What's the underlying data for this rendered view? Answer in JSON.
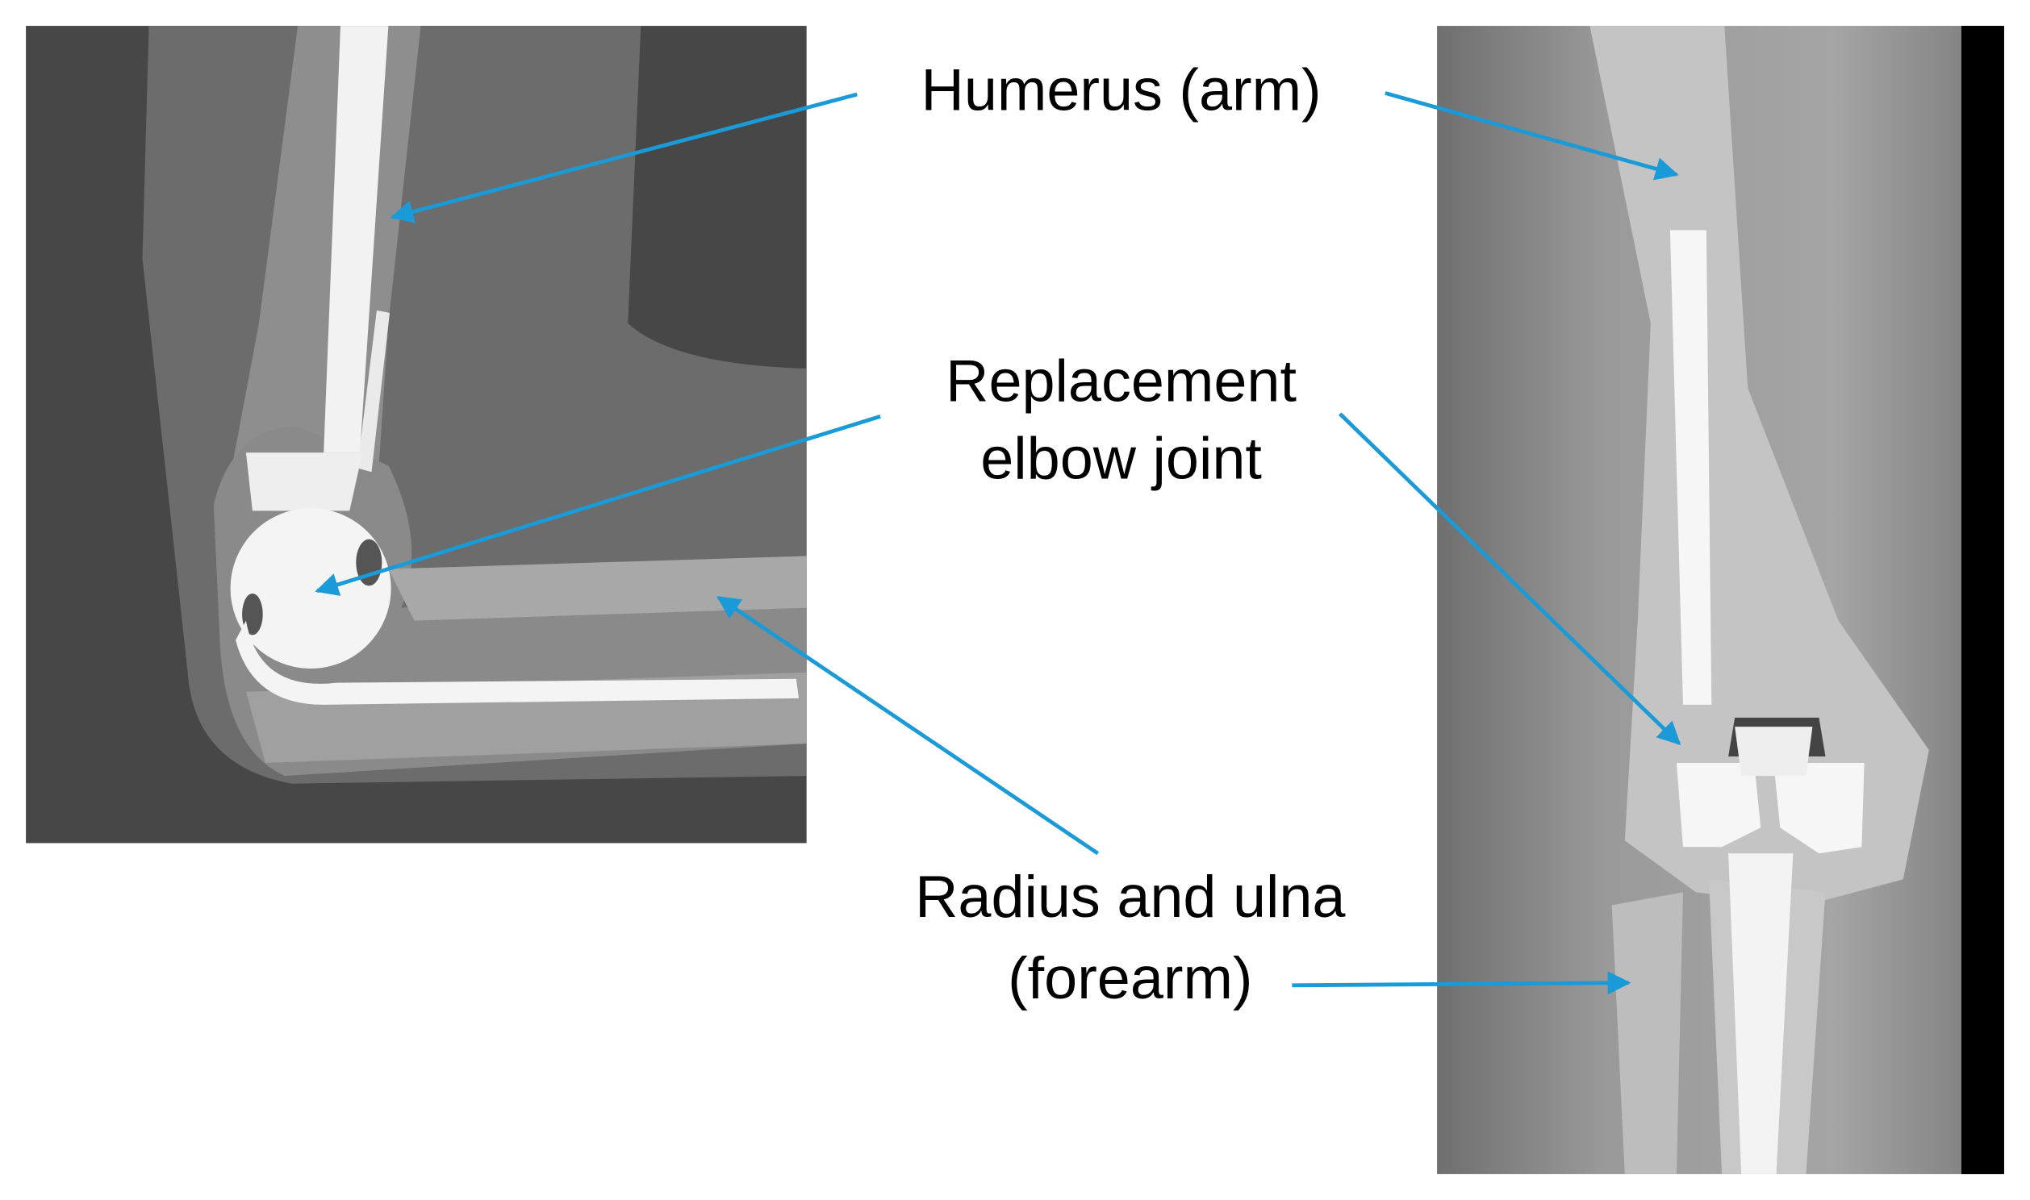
{
  "labels": [
    {
      "lines": [
        "Humerus (arm)"
      ]
    },
    {
      "lines": [
        "Replacement",
        "elbow joint"
      ]
    },
    {
      "lines": [
        "Radius and ulna",
        "(forearm)"
      ]
    }
  ]
}
